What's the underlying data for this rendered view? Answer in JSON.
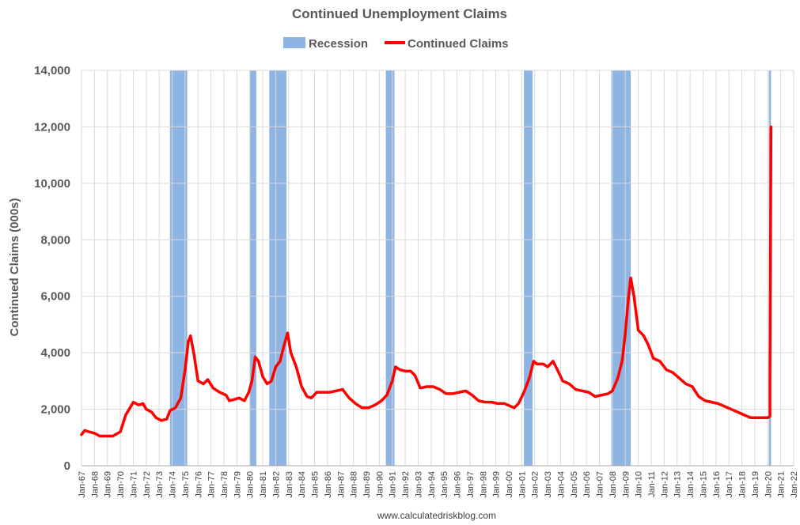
{
  "chart_data": {
    "type": "line",
    "title": "Continued Unemployment Claims",
    "ylabel": "Continued Claims (000s)",
    "xlabel": "",
    "ylim": [
      0,
      14000
    ],
    "yticks": [
      0,
      2000,
      4000,
      6000,
      8000,
      10000,
      12000,
      14000
    ],
    "ytick_labels": [
      "0",
      "2,000",
      "4,000",
      "6,000",
      "8,000",
      "10,000",
      "12,000",
      "14,000"
    ],
    "x_range": [
      "1967-01",
      "2022-01"
    ],
    "xtick_labels": [
      "Jan-67",
      "Jan-68",
      "Jan-69",
      "Jan-70",
      "Jan-71",
      "Jan-72",
      "Jan-73",
      "Jan-74",
      "Jan-75",
      "Jan-76",
      "Jan-77",
      "Jan-78",
      "Jan-79",
      "Jan-80",
      "Jan-81",
      "Jan-82",
      "Jan-83",
      "Jan-84",
      "Jan-85",
      "Jan-86",
      "Jan-87",
      "Jan-88",
      "Jan-89",
      "Jan-90",
      "Jan-91",
      "Jan-92",
      "Jan-93",
      "Jan-94",
      "Jan-95",
      "Jan-96",
      "Jan-97",
      "Jan-98",
      "Jan-99",
      "Jan-00",
      "Jan-01",
      "Jan-02",
      "Jan-03",
      "Jan-04",
      "Jan-05",
      "Jan-06",
      "Jan-07",
      "Jan-08",
      "Jan-09",
      "Jan-10",
      "Jan-11",
      "Jan-12",
      "Jan-13",
      "Jan-14",
      "Jan-15",
      "Jan-16",
      "Jan-17",
      "Jan-18",
      "Jan-19",
      "Jan-20",
      "Jan-21",
      "Jan-22"
    ],
    "grid": true,
    "legend_position": "top-center",
    "legend": [
      {
        "label": "Recession",
        "color": "#8EB4E3",
        "kind": "box"
      },
      {
        "label": "Continued Claims",
        "color": "#FF0000",
        "kind": "line"
      }
    ],
    "recession_color": "#8EB4E3",
    "line_color": "#FF0000",
    "recessions": [
      {
        "start": "1973-11",
        "end": "1975-03"
      },
      {
        "start": "1980-01",
        "end": "1980-07"
      },
      {
        "start": "1981-07",
        "end": "1982-11"
      },
      {
        "start": "1990-07",
        "end": "1991-03"
      },
      {
        "start": "2001-03",
        "end": "2001-11"
      },
      {
        "start": "2007-12",
        "end": "2009-06"
      },
      {
        "start": "2020-02",
        "end": "2020-04"
      }
    ],
    "series": [
      {
        "name": "Continued Claims",
        "points": [
          [
            "1967-01",
            1100
          ],
          [
            "1967-04",
            1250
          ],
          [
            "1967-08",
            1200
          ],
          [
            "1968-01",
            1150
          ],
          [
            "1968-06",
            1050
          ],
          [
            "1969-01",
            1050
          ],
          [
            "1969-06",
            1050
          ],
          [
            "1970-01",
            1200
          ],
          [
            "1970-06",
            1800
          ],
          [
            "1970-10",
            2050
          ],
          [
            "1971-01",
            2250
          ],
          [
            "1971-06",
            2150
          ],
          [
            "1971-10",
            2200
          ],
          [
            "1972-01",
            2000
          ],
          [
            "1972-06",
            1900
          ],
          [
            "1972-10",
            1700
          ],
          [
            "1973-03",
            1600
          ],
          [
            "1973-08",
            1650
          ],
          [
            "1973-11",
            1950
          ],
          [
            "1974-04",
            2050
          ],
          [
            "1974-09",
            2400
          ],
          [
            "1975-01",
            3400
          ],
          [
            "1975-04",
            4400
          ],
          [
            "1975-06",
            4600
          ],
          [
            "1975-09",
            4000
          ],
          [
            "1976-01",
            3000
          ],
          [
            "1976-06",
            2900
          ],
          [
            "1976-10",
            3050
          ],
          [
            "1977-03",
            2750
          ],
          [
            "1977-09",
            2600
          ],
          [
            "1978-03",
            2500
          ],
          [
            "1978-06",
            2300
          ],
          [
            "1978-11",
            2350
          ],
          [
            "1979-03",
            2400
          ],
          [
            "1979-08",
            2300
          ],
          [
            "1979-12",
            2600
          ],
          [
            "1980-03",
            3000
          ],
          [
            "1980-06",
            3850
          ],
          [
            "1980-09",
            3700
          ],
          [
            "1981-01",
            3150
          ],
          [
            "1981-05",
            2900
          ],
          [
            "1981-09",
            3000
          ],
          [
            "1982-01",
            3500
          ],
          [
            "1982-05",
            3700
          ],
          [
            "1982-09",
            4300
          ],
          [
            "1982-12",
            4700
          ],
          [
            "1983-03",
            4000
          ],
          [
            "1983-08",
            3500
          ],
          [
            "1984-01",
            2800
          ],
          [
            "1984-06",
            2450
          ],
          [
            "1984-10",
            2400
          ],
          [
            "1985-03",
            2600
          ],
          [
            "1985-09",
            2600
          ],
          [
            "1986-03",
            2600
          ],
          [
            "1986-09",
            2650
          ],
          [
            "1987-03",
            2700
          ],
          [
            "1987-09",
            2400
          ],
          [
            "1988-03",
            2200
          ],
          [
            "1988-09",
            2050
          ],
          [
            "1989-03",
            2050
          ],
          [
            "1989-09",
            2150
          ],
          [
            "1990-03",
            2300
          ],
          [
            "1990-08",
            2500
          ],
          [
            "1991-01",
            3000
          ],
          [
            "1991-04",
            3500
          ],
          [
            "1991-08",
            3400
          ],
          [
            "1992-01",
            3350
          ],
          [
            "1992-06",
            3350
          ],
          [
            "1992-10",
            3200
          ],
          [
            "1993-03",
            2750
          ],
          [
            "1993-09",
            2800
          ],
          [
            "1994-03",
            2800
          ],
          [
            "1994-09",
            2700
          ],
          [
            "1995-03",
            2550
          ],
          [
            "1995-09",
            2550
          ],
          [
            "1996-03",
            2600
          ],
          [
            "1996-09",
            2650
          ],
          [
            "1997-03",
            2500
          ],
          [
            "1997-09",
            2300
          ],
          [
            "1998-03",
            2250
          ],
          [
            "1998-09",
            2250
          ],
          [
            "1999-03",
            2200
          ],
          [
            "1999-09",
            2200
          ],
          [
            "2000-03",
            2100
          ],
          [
            "2000-06",
            2050
          ],
          [
            "2000-10",
            2200
          ],
          [
            "2001-03",
            2600
          ],
          [
            "2001-08",
            3100
          ],
          [
            "2001-12",
            3700
          ],
          [
            "2002-03",
            3600
          ],
          [
            "2002-09",
            3600
          ],
          [
            "2003-01",
            3500
          ],
          [
            "2003-06",
            3700
          ],
          [
            "2003-10",
            3400
          ],
          [
            "2004-03",
            3000
          ],
          [
            "2004-09",
            2900
          ],
          [
            "2005-03",
            2700
          ],
          [
            "2005-09",
            2650
          ],
          [
            "2006-03",
            2600
          ],
          [
            "2006-09",
            2450
          ],
          [
            "2007-03",
            2500
          ],
          [
            "2007-09",
            2550
          ],
          [
            "2008-01",
            2650
          ],
          [
            "2008-06",
            3100
          ],
          [
            "2008-10",
            3700
          ],
          [
            "2009-01",
            4700
          ],
          [
            "2009-04",
            6000
          ],
          [
            "2009-06",
            6650
          ],
          [
            "2009-09",
            6000
          ],
          [
            "2010-01",
            4800
          ],
          [
            "2010-06",
            4600
          ],
          [
            "2010-10",
            4300
          ],
          [
            "2011-03",
            3800
          ],
          [
            "2011-09",
            3700
          ],
          [
            "2012-03",
            3400
          ],
          [
            "2012-09",
            3300
          ],
          [
            "2013-03",
            3100
          ],
          [
            "2013-09",
            2900
          ],
          [
            "2014-03",
            2800
          ],
          [
            "2014-09",
            2450
          ],
          [
            "2015-03",
            2300
          ],
          [
            "2015-09",
            2250
          ],
          [
            "2016-03",
            2200
          ],
          [
            "2016-09",
            2100
          ],
          [
            "2017-03",
            2000
          ],
          [
            "2017-09",
            1900
          ],
          [
            "2018-03",
            1800
          ],
          [
            "2018-09",
            1700
          ],
          [
            "2019-03",
            1700
          ],
          [
            "2019-09",
            1700
          ],
          [
            "2020-01",
            1700
          ],
          [
            "2020-03",
            1750
          ],
          [
            "2020-03",
            3000
          ],
          [
            "2020-04",
            12000
          ]
        ]
      }
    ]
  },
  "source_text": "www.calculatedriskblog.com"
}
